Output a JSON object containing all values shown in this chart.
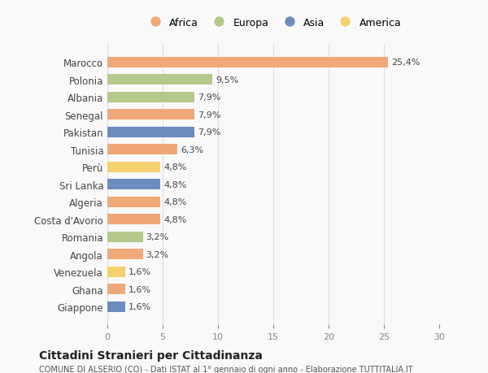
{
  "countries": [
    "Marocco",
    "Polonia",
    "Albania",
    "Senegal",
    "Pakistan",
    "Tunisia",
    "Perù",
    "Sri Lanka",
    "Algeria",
    "Costa d'Avorio",
    "Romania",
    "Angola",
    "Venezuela",
    "Ghana",
    "Giappone"
  ],
  "values": [
    25.4,
    9.5,
    7.9,
    7.9,
    7.9,
    6.3,
    4.8,
    4.8,
    4.8,
    4.8,
    3.2,
    3.2,
    1.6,
    1.6,
    1.6
  ],
  "labels": [
    "25,4%",
    "9,5%",
    "7,9%",
    "7,9%",
    "7,9%",
    "6,3%",
    "4,8%",
    "4,8%",
    "4,8%",
    "4,8%",
    "3,2%",
    "3,2%",
    "1,6%",
    "1,6%",
    "1,6%"
  ],
  "continents": [
    "Africa",
    "Europa",
    "Europa",
    "Africa",
    "Asia",
    "Africa",
    "America",
    "Asia",
    "Africa",
    "Africa",
    "Europa",
    "Africa",
    "America",
    "Africa",
    "Asia"
  ],
  "colors": {
    "Africa": "#F0A878",
    "Europa": "#B5C98A",
    "Asia": "#6B8DBE",
    "America": "#F5D06E"
  },
  "legend_order": [
    "Africa",
    "Europa",
    "Asia",
    "America"
  ],
  "xlim": [
    0,
    30
  ],
  "xticks": [
    0,
    5,
    10,
    15,
    20,
    25,
    30
  ],
  "title": "Cittadini Stranieri per Cittadinanza",
  "subtitle": "COMUNE DI ALSERIO (CO) - Dati ISTAT al 1° gennaio di ogni anno - Elaborazione TUTTITALIA.IT",
  "bg_color": "#f9f9f9",
  "bar_height": 0.6,
  "grid_color": "#dddddd"
}
